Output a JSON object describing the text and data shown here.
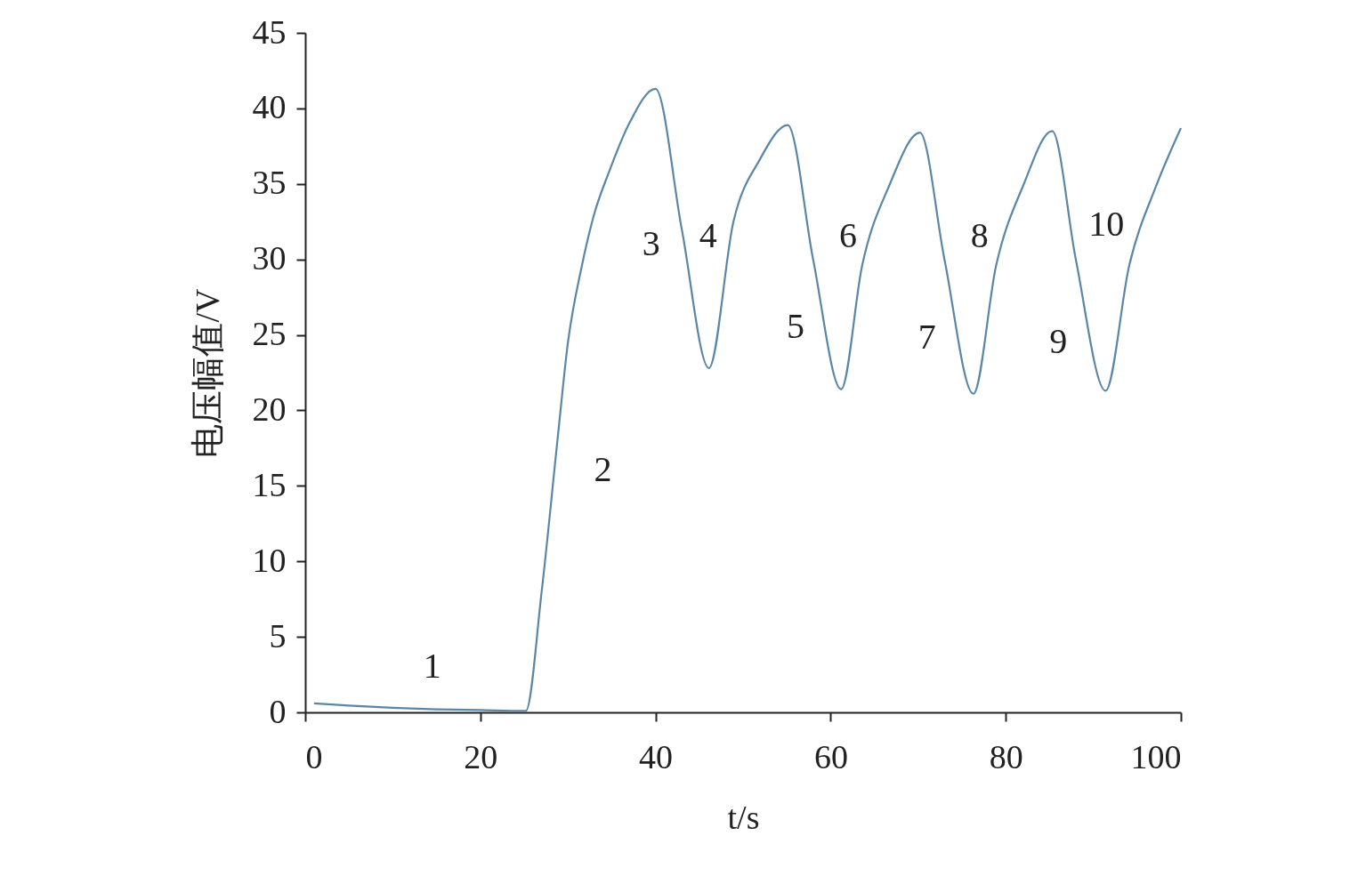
{
  "chart_data": {
    "type": "line",
    "xlabel": "t/s",
    "ylabel": "电压幅值/V",
    "x": [
      1,
      5,
      10,
      15,
      20,
      25.2,
      27,
      28.8,
      30,
      31.6,
      33,
      34.7,
      37,
      40,
      43,
      46.1,
      48.9,
      51.9,
      55.1,
      58,
      61.2,
      63.6,
      66.7,
      70.2,
      73,
      76.3,
      78.9,
      82,
      85.3,
      88,
      91.4,
      94.1,
      97.2,
      100
    ],
    "series": [
      {
        "color": "#5b86a6",
        "values": [
          0.6,
          0.45,
          0.3,
          0.2,
          0.15,
          0.1,
          8,
          18,
          24.5,
          29.6,
          33,
          35.8,
          39,
          41.3,
          32,
          22.8,
          32.5,
          36.6,
          38.9,
          30,
          21.4,
          29.6,
          34.9,
          38.4,
          30,
          21.1,
          29.6,
          34.9,
          38.5,
          30,
          21.3,
          29.6,
          34.9,
          38.7
        ]
      }
    ],
    "xlim": [
      0,
      100
    ],
    "xticks": [
      0,
      20,
      40,
      60,
      80,
      100
    ],
    "ylim": [
      0,
      45
    ],
    "yticks": [
      0,
      5,
      10,
      15,
      20,
      25,
      30,
      35,
      40,
      45
    ],
    "grid": false,
    "marker": "none",
    "line_style": "solid",
    "annotations": [
      "1",
      "2",
      "3",
      "4",
      "5",
      "6",
      "7",
      "8",
      "9",
      "10"
    ]
  }
}
